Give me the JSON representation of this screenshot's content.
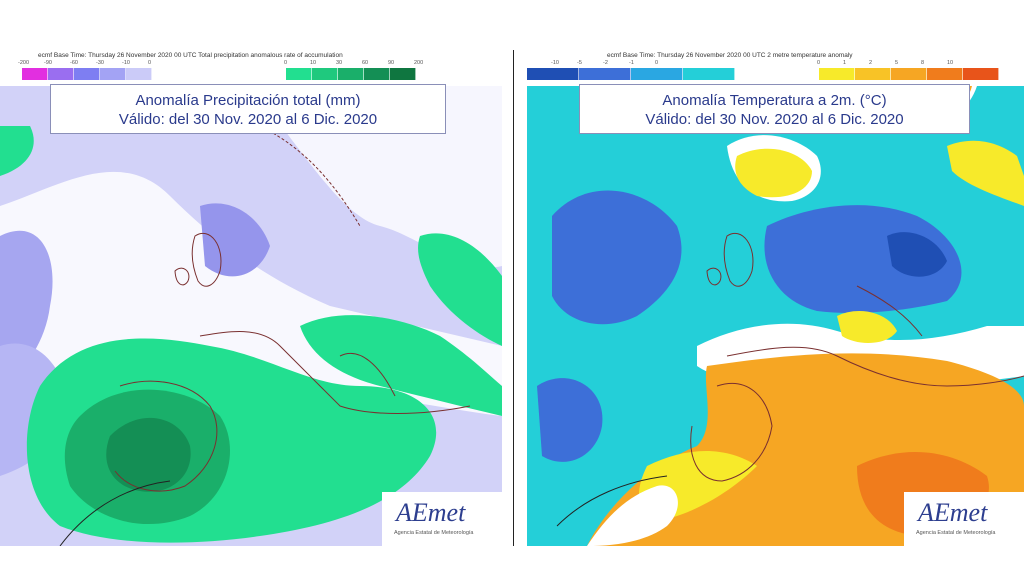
{
  "left_map": {
    "header": "ecmf  Base Time: Thursday 26 November 2020 00 UTC Total precipitation anomalous rate of accumulation",
    "scale_negative": {
      "ticks": [
        "-200",
        "-90",
        "-60",
        "-30",
        "-10",
        "0"
      ],
      "colors": [
        "#e22fe0",
        "#9a6ef0",
        "#7e7ef2",
        "#a3a3f4",
        "#cbcbf8"
      ]
    },
    "scale_positive": {
      "ticks": [
        "0",
        "10",
        "30",
        "60",
        "90",
        "200"
      ],
      "colors": [
        "#22df90",
        "#1fc97e",
        "#1aaf6a",
        "#148f55",
        "#0f7640"
      ]
    },
    "title_line1": "Anomalía Precipitación total (mm)",
    "title_line2": "Válido: del 30 Nov. 2020 al 6 Dic. 2020",
    "logo_text": "AEmet",
    "logo_subtext": "Agencia Estatal de Meteorología"
  },
  "right_map": {
    "header": "ecmf  Base Time: Thursday 26 November 2020 00 UTC 2 metre temperature anomaly",
    "scale_negative": {
      "ticks": [
        "-10",
        "-5",
        "-2",
        "-1",
        "0"
      ],
      "colors": [
        "#1f4fb4",
        "#3d6fd8",
        "#2aa7e2",
        "#24cfd8"
      ]
    },
    "scale_positive": {
      "ticks": [
        "0",
        "1",
        "2",
        "5",
        "8",
        "10"
      ],
      "colors": [
        "#f7ea2a",
        "#f8c326",
        "#f6a623",
        "#f07c1c",
        "#e8541a"
      ]
    },
    "title_line1": "Anomalía Temperatura a 2m. (°C)",
    "title_line2": "Válido: del 30 Nov. 2020 al 6 Dic. 2020",
    "logo_text": "AEmet",
    "logo_subtext": "Agencia Estatal de Meteorología"
  }
}
